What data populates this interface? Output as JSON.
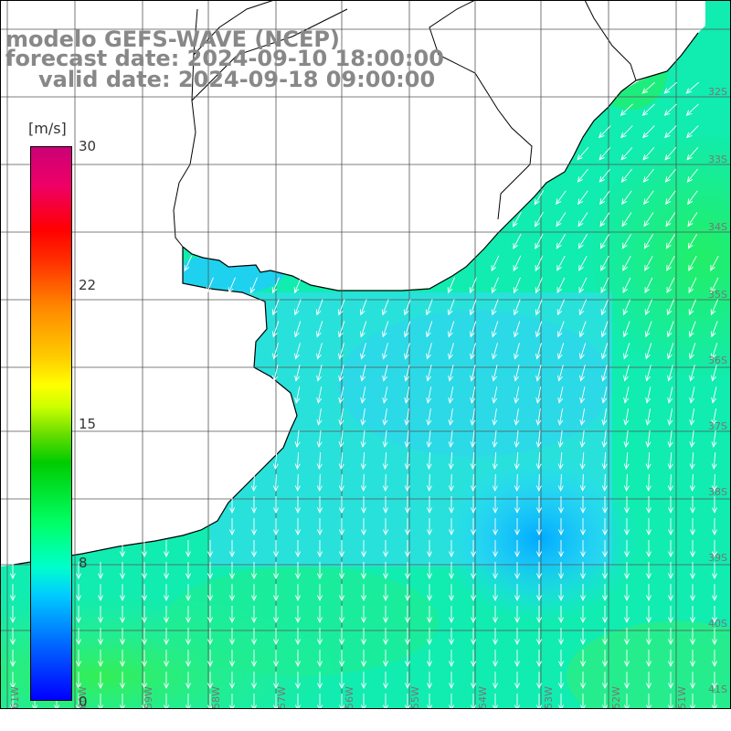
{
  "title": {
    "line1": "modelo GEFS-WAVE (NCEP)",
    "line2": "forecast date: 2024-09-10 18:00:00",
    "line3": "valid date: 2024-09-18 09:00:00"
  },
  "colorbar": {
    "unit": "[m/s]",
    "ticks": [
      "30",
      "22",
      "15",
      "8",
      "0"
    ],
    "tick_values": [
      30,
      22,
      15,
      8,
      0
    ]
  },
  "latitude_labels": [
    "32S",
    "33S",
    "34S",
    "35S",
    "36S",
    "37S",
    "38S",
    "39S",
    "40S",
    "41S"
  ],
  "longitude_labels": [
    "61W",
    "60W",
    "59W",
    "58W",
    "57W",
    "56W",
    "55W",
    "54W",
    "53W",
    "52W",
    "51W"
  ],
  "colors": {
    "land": "#ffffff",
    "coast": "#000000",
    "grid": "#555555",
    "arrows": "#ffffff"
  }
}
